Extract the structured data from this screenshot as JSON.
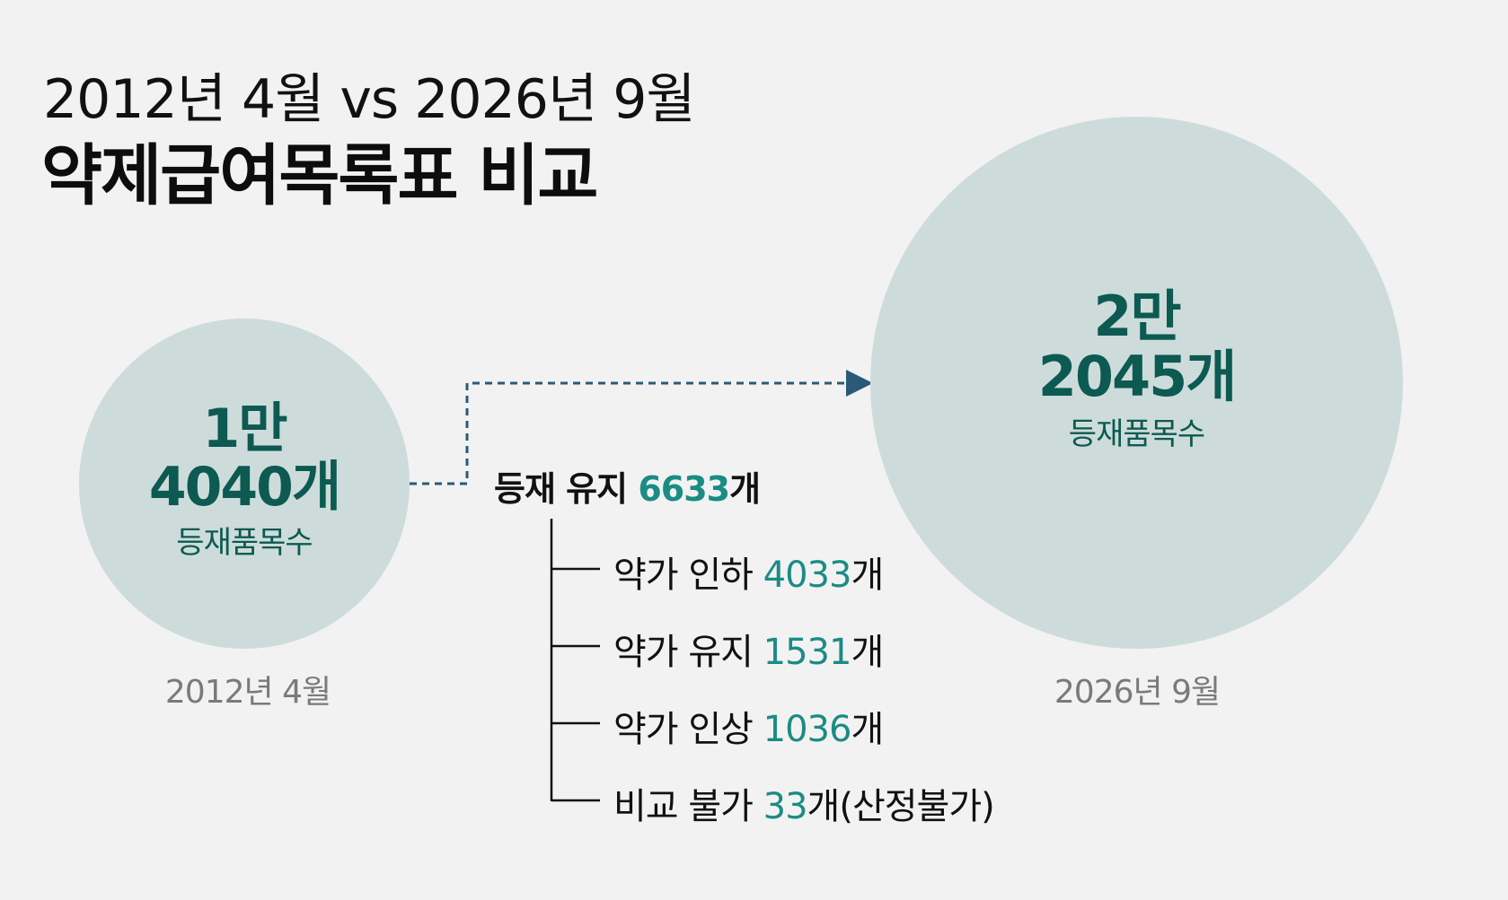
{
  "title": {
    "line1": "2012년 4월 vs 2026년 9월",
    "line2": "약제급여목록표 비교"
  },
  "left_circle": {
    "line1": "1만",
    "line2": "4040개",
    "label": "등재품목수",
    "caption": "2012년 4월"
  },
  "right_circle": {
    "line1": "2만",
    "line2": "2045개",
    "label": "등재품목수",
    "caption": "2026년 9월"
  },
  "retained": {
    "label": "등재 유지 ",
    "value": "6633",
    "unit": "개"
  },
  "breakdown": [
    {
      "label": "약가 인하 ",
      "value": "4033",
      "unit": "개"
    },
    {
      "label": "약가 유지 ",
      "value": "1531",
      "unit": "개"
    },
    {
      "label": "약가 인상 ",
      "value": "1036",
      "unit": "개"
    },
    {
      "label": "비교 불가 ",
      "value": "33",
      "unit": "개(산정불가)"
    }
  ],
  "colors": {
    "background": "#f2f2f2",
    "circle": "#cddcda",
    "circle_text": "#0c5a52",
    "accent": "#1a8c84",
    "connector": "#2a5a78",
    "caption": "#7a7a7a"
  }
}
